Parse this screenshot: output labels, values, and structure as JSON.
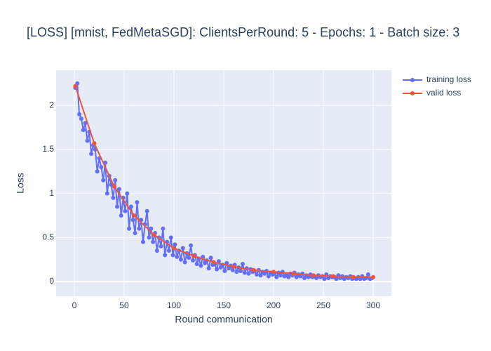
{
  "chart_data": {
    "type": "line",
    "title": "[LOSS] [mnist, FedMetaSGD]: ClientsPerRound: 5 - Epochs: 1 - Batch size: 3",
    "xlabel": "Round communication",
    "ylabel": "Loss",
    "xlim": [
      -18.3,
      318.3
    ],
    "xticks": [
      0,
      50,
      100,
      150,
      200,
      250,
      300
    ],
    "ylim": [
      -0.167,
      2.4
    ],
    "yticks": [
      0,
      0.5,
      1,
      1.5,
      2
    ],
    "grid": true,
    "legend": "outside-right",
    "series": [
      {
        "name": "training loss",
        "color": "#636efa",
        "x": [
          1,
          3,
          5,
          7,
          9,
          11,
          13,
          15,
          17,
          19,
          21,
          23,
          25,
          27,
          29,
          31,
          33,
          35,
          37,
          39,
          41,
          43,
          45,
          47,
          49,
          51,
          53,
          55,
          57,
          59,
          61,
          63,
          65,
          67,
          69,
          71,
          73,
          75,
          77,
          79,
          81,
          83,
          85,
          87,
          89,
          91,
          93,
          95,
          97,
          99,
          101,
          103,
          105,
          107,
          109,
          111,
          113,
          115,
          117,
          119,
          121,
          123,
          125,
          127,
          129,
          131,
          133,
          135,
          137,
          139,
          141,
          143,
          145,
          147,
          149,
          151,
          153,
          155,
          157,
          159,
          161,
          163,
          165,
          167,
          169,
          171,
          173,
          175,
          177,
          179,
          181,
          183,
          185,
          187,
          189,
          191,
          193,
          195,
          197,
          199,
          201,
          203,
          205,
          207,
          209,
          211,
          213,
          215,
          217,
          219,
          221,
          223,
          225,
          227,
          229,
          231,
          233,
          235,
          237,
          239,
          241,
          243,
          245,
          247,
          249,
          251,
          253,
          255,
          257,
          259,
          261,
          263,
          265,
          267,
          269,
          271,
          273,
          275,
          277,
          279,
          281,
          283,
          285,
          287,
          289,
          291,
          293,
          295,
          297,
          299
        ],
        "values": [
          2.2,
          2.25,
          1.9,
          1.85,
          1.72,
          1.8,
          1.6,
          1.7,
          1.45,
          1.55,
          1.5,
          1.25,
          1.4,
          1.3,
          1.15,
          1.35,
          1.0,
          1.2,
          1.1,
          0.95,
          1.15,
          0.85,
          1.05,
          0.75,
          0.95,
          0.8,
          1.0,
          0.6,
          0.85,
          0.7,
          0.55,
          0.9,
          0.6,
          0.7,
          0.45,
          0.65,
          0.8,
          0.5,
          0.6,
          0.45,
          0.55,
          0.35,
          0.5,
          0.4,
          0.6,
          0.3,
          0.45,
          0.35,
          0.5,
          0.3,
          0.42,
          0.28,
          0.35,
          0.25,
          0.38,
          0.22,
          0.32,
          0.27,
          0.41,
          0.24,
          0.3,
          0.2,
          0.26,
          0.18,
          0.28,
          0.21,
          0.24,
          0.15,
          0.27,
          0.19,
          0.2,
          0.14,
          0.23,
          0.16,
          0.19,
          0.12,
          0.21,
          0.15,
          0.18,
          0.13,
          0.19,
          0.11,
          0.16,
          0.12,
          0.2,
          0.1,
          0.15,
          0.09,
          0.14,
          0.11,
          0.12,
          0.08,
          0.13,
          0.07,
          0.11,
          0.09,
          0.12,
          0.06,
          0.1,
          0.08,
          0.09,
          0.05,
          0.1,
          0.07,
          0.11,
          0.06,
          0.08,
          0.05,
          0.09,
          0.07,
          0.1,
          0.05,
          0.08,
          0.06,
          0.09,
          0.04,
          0.07,
          0.05,
          0.08,
          0.05,
          0.06,
          0.04,
          0.07,
          0.05,
          0.06,
          0.03,
          0.08,
          0.04,
          0.06,
          0.05,
          0.05,
          0.03,
          0.07,
          0.04,
          0.06,
          0.03,
          0.05,
          0.04,
          0.06,
          0.03,
          0.04,
          0.03,
          0.05,
          0.03,
          0.06,
          0.03,
          0.04,
          0.08,
          0.03,
          0.04
        ]
      },
      {
        "name": "valid loss",
        "color": "#ef553b",
        "x": [
          1,
          20,
          40,
          60,
          80,
          100,
          120,
          140,
          160,
          180,
          200,
          220,
          240,
          260,
          280,
          300
        ],
        "values": [
          2.22,
          1.57,
          1.08,
          0.75,
          0.53,
          0.38,
          0.29,
          0.22,
          0.17,
          0.13,
          0.11,
          0.09,
          0.07,
          0.06,
          0.05,
          0.05
        ]
      }
    ]
  }
}
